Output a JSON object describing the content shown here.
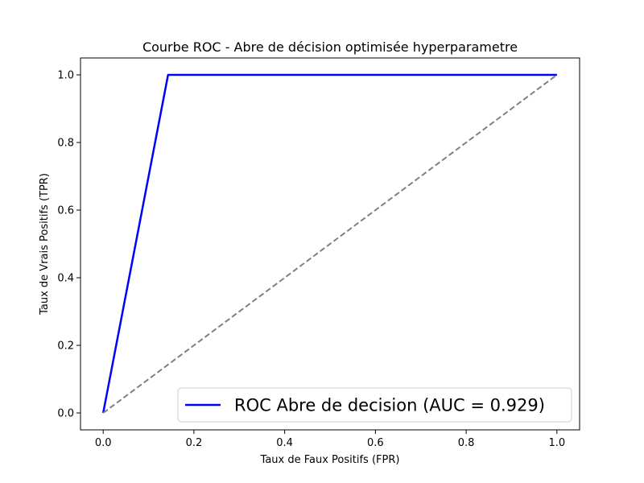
{
  "chart_data": {
    "type": "line",
    "title": "Courbe ROC - Abre de décision optimisée hyperparametre",
    "xlabel": "Taux de Faux Positifs (FPR)",
    "ylabel": "Taux de Vrais Positifs (TPR)",
    "xlim": [
      -0.05,
      1.05
    ],
    "ylim": [
      -0.05,
      1.05
    ],
    "xticks": [
      0.0,
      0.2,
      0.4,
      0.6,
      0.8,
      1.0
    ],
    "yticks": [
      0.0,
      0.2,
      0.4,
      0.6,
      0.8,
      1.0
    ],
    "xtick_labels": [
      "0.0",
      "0.2",
      "0.4",
      "0.6",
      "0.8",
      "1.0"
    ],
    "ytick_labels": [
      "0.0",
      "0.2",
      "0.4",
      "0.6",
      "0.8",
      "1.0"
    ],
    "grid": false,
    "legend_position": "lower-right",
    "series": [
      {
        "name": "ROC Abre de decision (AUC = 0.929)",
        "color": "#0000ff",
        "style": "solid",
        "x": [
          0.0,
          0.143,
          1.0
        ],
        "y": [
          0.0,
          1.0,
          1.0
        ]
      },
      {
        "color": "#808080",
        "style": "dashed",
        "x": [
          0.0,
          1.0
        ],
        "y": [
          0.0,
          1.0
        ]
      }
    ]
  }
}
